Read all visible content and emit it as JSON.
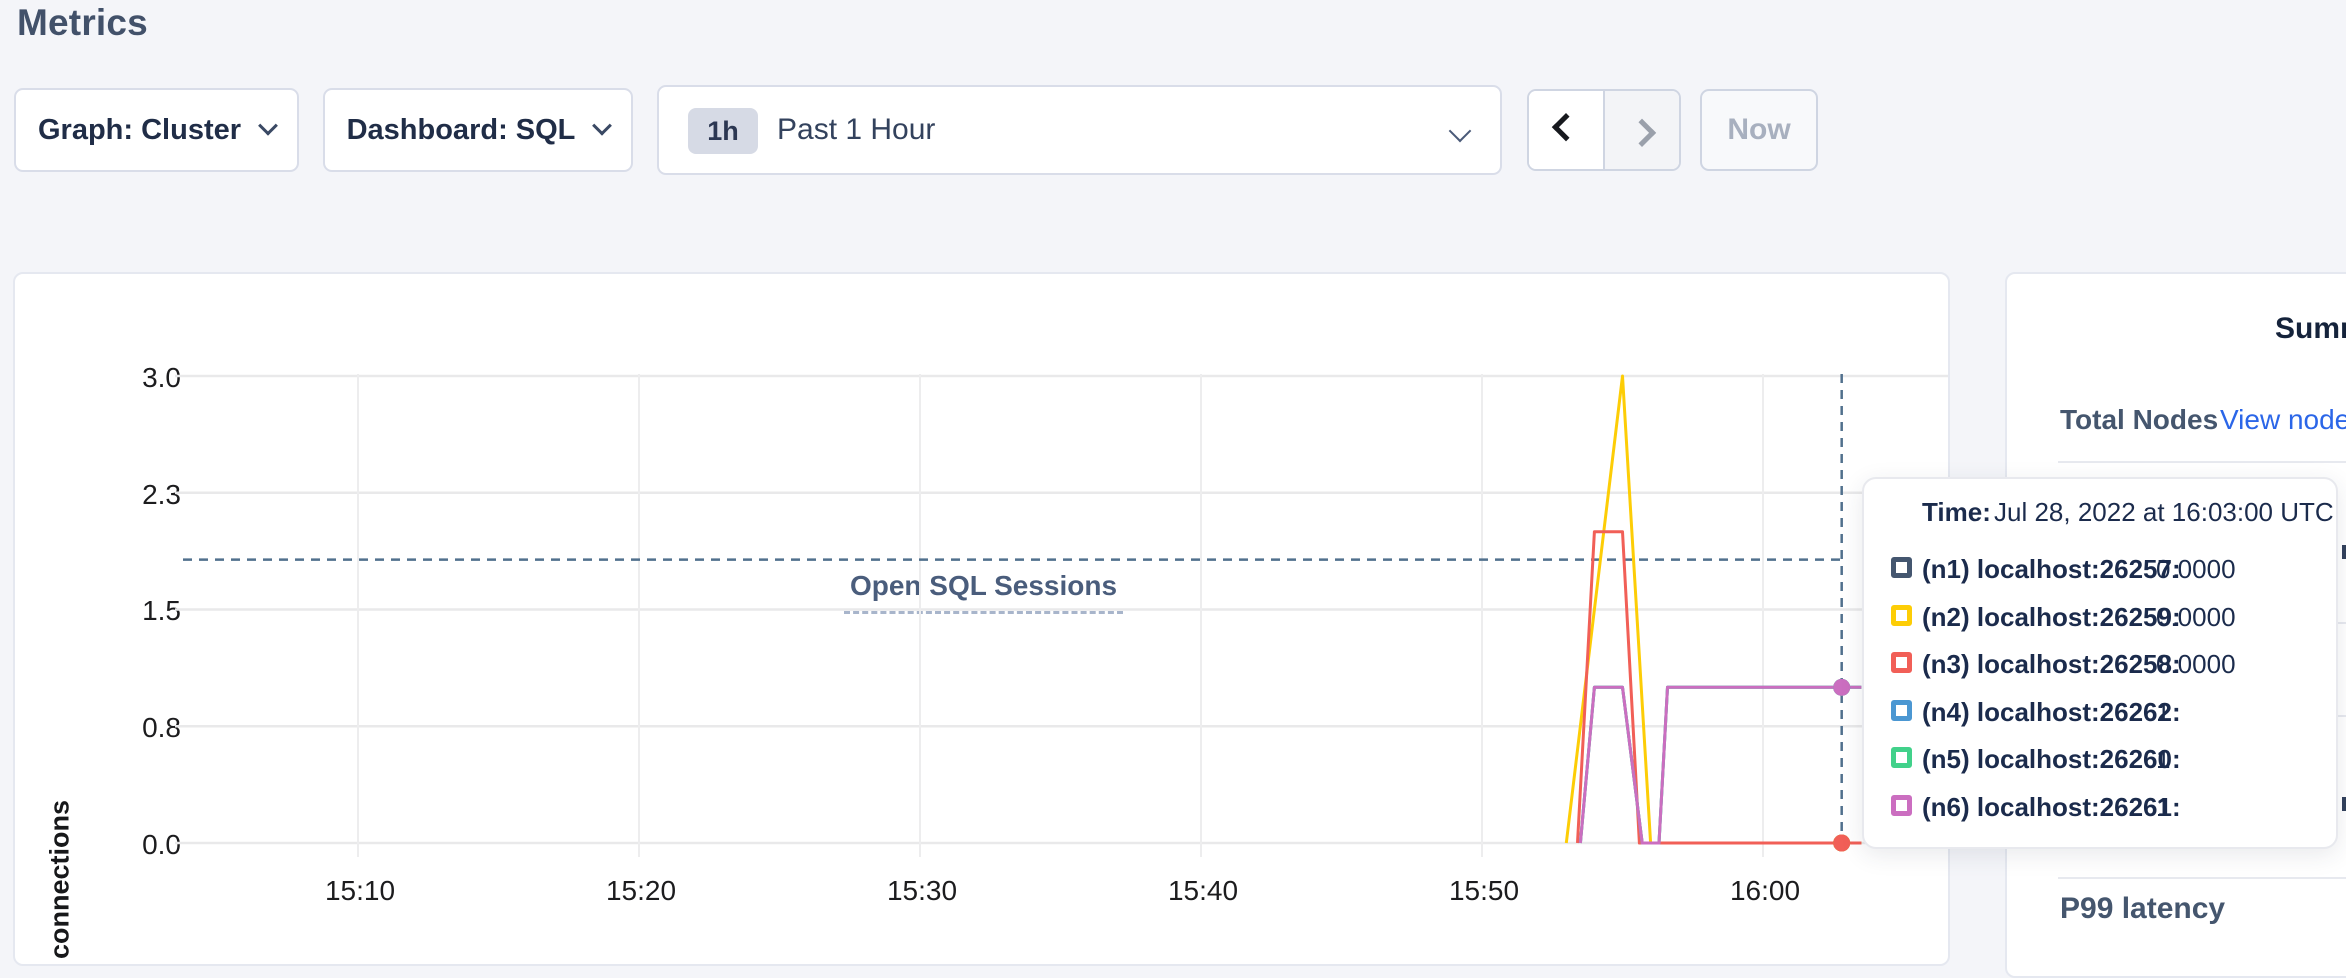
{
  "header": {
    "title": "Metrics"
  },
  "toolbar": {
    "graph_dropdown_label": "Graph: Cluster",
    "dashboard_dropdown_label": "Dashboard: SQL",
    "time_range": {
      "badge": "1h",
      "label": "Past 1 Hour"
    },
    "now_label": "Now"
  },
  "chart": {
    "title": "Open SQL Sessions",
    "y_axis_label": "connections"
  },
  "chart_data": {
    "type": "line",
    "title": "Open SQL Sessions",
    "ylabel": "connections",
    "ylim": [
      0,
      3
    ],
    "grid": true,
    "y_ticks": [
      {
        "label": "0.0",
        "value": 0
      },
      {
        "label": "0.8",
        "value": 0.75
      },
      {
        "label": "1.5",
        "value": 1.5
      },
      {
        "label": "2.3",
        "value": 2.25
      },
      {
        "label": "3.0",
        "value": 3
      }
    ],
    "x_ticks": [
      {
        "label": "15:10",
        "min": 10
      },
      {
        "label": "15:20",
        "min": 20
      },
      {
        "label": "15:30",
        "min": 30
      },
      {
        "label": "15:40",
        "min": 40
      },
      {
        "label": "15:50",
        "min": 50
      },
      {
        "label": "16:00",
        "min": 60
      }
    ],
    "x_unit": "time of day (UTC), minutes after 15:00, Jul 28 2022",
    "series": [
      {
        "name": "(n1) localhost:26257",
        "color": "#44566f",
        "points": [
          [
            55.6,
            0
          ],
          [
            63.5,
            0
          ]
        ]
      },
      {
        "name": "(n2) localhost:26259",
        "color": "#fdcd06",
        "points": [
          [
            53,
            0
          ],
          [
            55,
            3
          ],
          [
            56,
            0
          ],
          [
            63.5,
            0
          ]
        ]
      },
      {
        "name": "(n3) localhost:26258",
        "color": "#f15f57",
        "points": [
          [
            53.4,
            0
          ],
          [
            54,
            2
          ],
          [
            55,
            2
          ],
          [
            55.6,
            0
          ],
          [
            63.5,
            0
          ]
        ]
      },
      {
        "name": "(n4) localhost:26262",
        "color": "#4b97d2",
        "points": [
          [
            53.5,
            0
          ],
          [
            54,
            1
          ],
          [
            55,
            1
          ],
          [
            55.7,
            0
          ],
          [
            56.3,
            0
          ],
          [
            56.6,
            1
          ],
          [
            63.5,
            1
          ]
        ]
      },
      {
        "name": "(n5) localhost:26260",
        "color": "#41d18a",
        "points": [
          [
            53.5,
            0
          ],
          [
            54,
            1
          ],
          [
            55,
            1
          ],
          [
            55.7,
            0
          ],
          [
            56.3,
            0
          ],
          [
            56.6,
            1
          ],
          [
            63.5,
            1
          ]
        ]
      },
      {
        "name": "(n6) localhost:26261",
        "color": "#cb6ec0",
        "points": [
          [
            53.5,
            0
          ],
          [
            54,
            1
          ],
          [
            55,
            1
          ],
          [
            55.7,
            0
          ],
          [
            56.3,
            0
          ],
          [
            56.6,
            1
          ],
          [
            63.5,
            1
          ]
        ]
      }
    ],
    "crosshair": {
      "x_min": 62.8,
      "y_value": 1.82,
      "color": "#51708d"
    },
    "highlight_dots": [
      {
        "series": 0,
        "t": 62.8,
        "v": 0
      },
      {
        "series": 1,
        "t": 62.8,
        "v": 0
      },
      {
        "series": 2,
        "t": 62.8,
        "v": 0
      },
      {
        "series": 3,
        "t": 62.8,
        "v": 1
      },
      {
        "series": 4,
        "t": 62.8,
        "v": 1
      },
      {
        "series": 5,
        "t": 62.8,
        "v": 1
      }
    ]
  },
  "tooltip": {
    "time_label": "Time:",
    "time_value": "Jul 28, 2022 at 16:03:00 UTC",
    "rows": [
      {
        "label": "(n1) localhost:26257:",
        "value": "0.0000",
        "color": "#44566f"
      },
      {
        "label": "(n2) localhost:26259:",
        "value": "0.0000",
        "color": "#fdcd06"
      },
      {
        "label": "(n3) localhost:26258:",
        "value": "0.0000",
        "color": "#f15f57"
      },
      {
        "label": "(n4) localhost:26262:",
        "value": "1",
        "color": "#4b97d2"
      },
      {
        "label": "(n5) localhost:26260:",
        "value": "1",
        "color": "#41d18a"
      },
      {
        "label": "(n6) localhost:26261:",
        "value": "1",
        "color": "#cb6ec0"
      }
    ]
  },
  "sidebar": {
    "title": "Summary",
    "total_nodes_label": "Total Nodes",
    "view_nodes_link": "View nodes",
    "p99_label": "P99 latency"
  }
}
